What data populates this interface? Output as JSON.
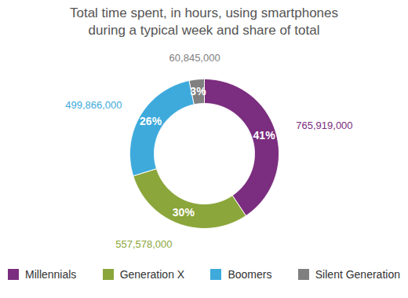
{
  "chart_data": {
    "type": "donut",
    "title": "Total time spent, in hours, using smartphones during a typical week and share of total",
    "categories": [
      "Millennials",
      "Generation X",
      "Boomers",
      "Silent Generation"
    ],
    "values": [
      765919000,
      557578000,
      499866000,
      60845000
    ],
    "value_labels": [
      "765,919,000",
      "557,578,000",
      "499,866,000",
      "60,845,000"
    ],
    "shares": [
      41,
      30,
      26,
      3
    ],
    "share_labels": [
      "41%",
      "30%",
      "26%",
      "3%"
    ],
    "colors": [
      "#7b2d7f",
      "#8ba63a",
      "#3eaadc",
      "#808080"
    ],
    "data_labels": true,
    "legend": "bottom"
  }
}
